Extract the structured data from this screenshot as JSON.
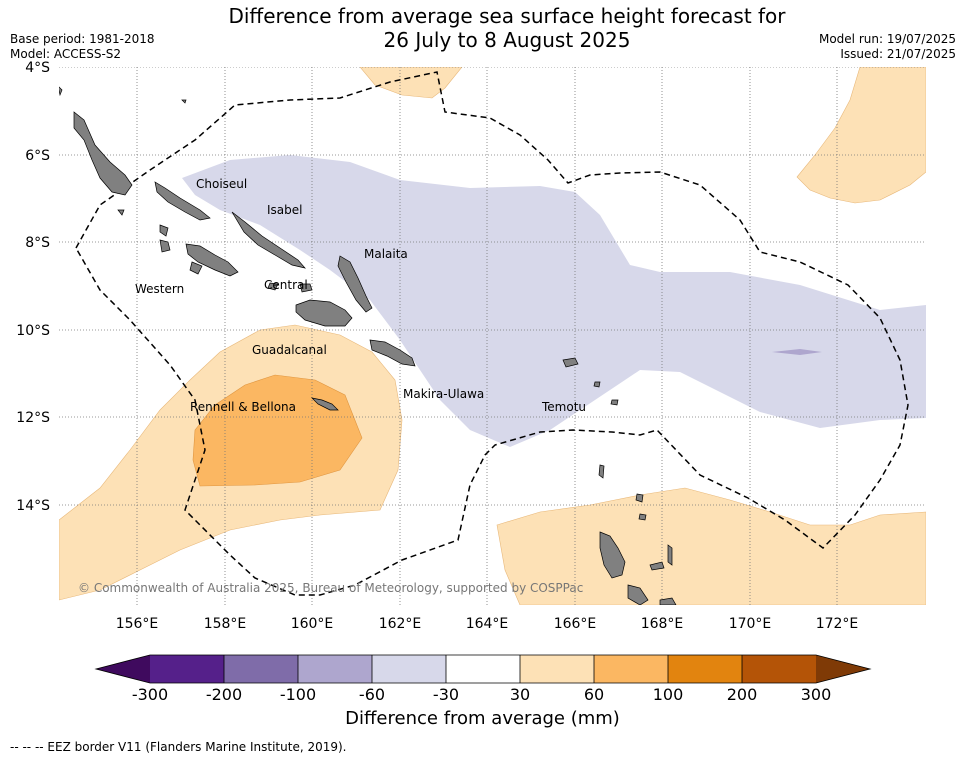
{
  "title": {
    "line1": "Difference from average sea surface height forecast for",
    "line2": "26 July to 8 August 2025"
  },
  "header": {
    "base_period": "Base period: 1981-2018",
    "model": "Model: ACCESS-S2",
    "model_run": "Model run: 19/07/2025",
    "issued": "Issued: 21/07/2025"
  },
  "map": {
    "lon_ticks": [
      "156°E",
      "158°E",
      "160°E",
      "162°E",
      "164°E",
      "166°E",
      "168°E",
      "170°E",
      "172°E"
    ],
    "lat_ticks": [
      "4°S",
      "6°S",
      "8°S",
      "10°S",
      "12°S",
      "14°S"
    ],
    "province_labels": [
      "Choiseul",
      "Isabel",
      "Malaita",
      "Western",
      "Central",
      "Guadalcanal",
      "Makira-Ulawa",
      "Rennell & Bellona",
      "Temotu"
    ],
    "copyright": "© Commonwealth of Australia 2025, Bureau of Meteorology, supported by COSPPac",
    "land_color": "#808080"
  },
  "colorbar": {
    "title": "Difference from average (mm)",
    "ticks": [
      "-300",
      "-200",
      "-100",
      "-60",
      "-30",
      "30",
      "60",
      "100",
      "200",
      "300"
    ],
    "under_color": "#3f0a5e",
    "colors": [
      "#55208a",
      "#7f6ca9",
      "#aea6ce",
      "#d7d8ea",
      "#ffffff",
      "#fde1b6",
      "#fbb762",
      "#e2840f",
      "#b45407"
    ],
    "over_color": "#7f3a06"
  },
  "legend": {
    "eez": "-- -- -- EEZ border V11 (Flanders Marine Institute, 2019)."
  }
}
